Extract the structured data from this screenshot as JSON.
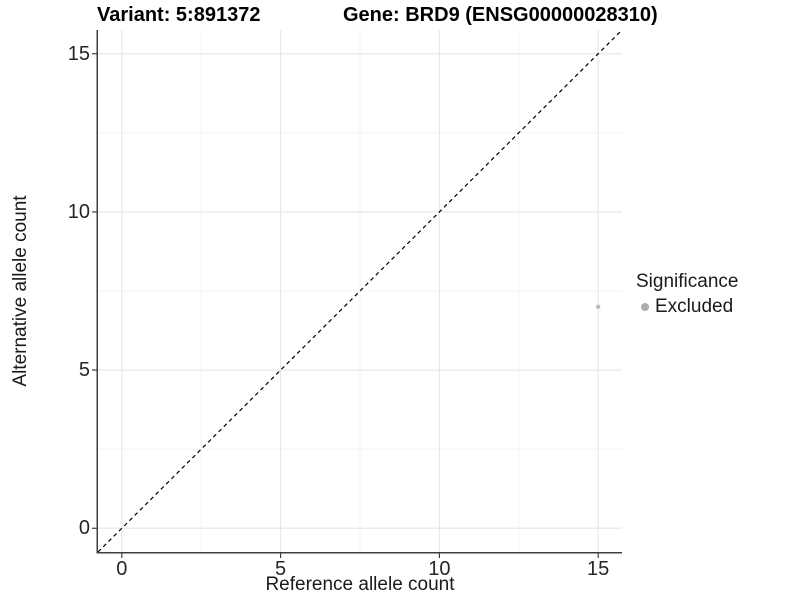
{
  "chart_data": {
    "type": "scatter",
    "title_left": "Variant: 5:891372",
    "title_right": "Gene: BRD9 (ENSG00000028310)",
    "xlabel": "Reference allele count",
    "ylabel": "Alternative allele count",
    "xlim": [
      -0.75,
      15.75
    ],
    "ylim": [
      -0.75,
      15.75
    ],
    "x_ticks": [
      0,
      5,
      10,
      15
    ],
    "y_ticks": [
      0,
      5,
      10,
      15
    ],
    "x_minor_ticks": [
      2.5,
      7.5,
      12.5
    ],
    "y_minor_ticks": [
      2.5,
      7.5,
      12.5
    ],
    "grid": "major+minor",
    "identity_line": {
      "style": "dashed",
      "color": "#000000",
      "from": [
        -0.75,
        -0.75
      ],
      "to": [
        15.75,
        15.75
      ]
    },
    "series": [
      {
        "name": "Excluded",
        "color": "#bcbcbc",
        "point_radius": 2.2,
        "points": [
          {
            "x": 15,
            "y": 7
          }
        ]
      }
    ],
    "legend": {
      "title": "Significance",
      "position": "right",
      "entries": [
        {
          "label": "Excluded",
          "color": "#acacac"
        }
      ]
    },
    "colors": {
      "background": "#ffffff",
      "grid_major": "#e8e8e8",
      "grid_minor": "#f3f3f3",
      "axis_line": "#3f3f3f",
      "tick_mark": "#3f3f3f"
    }
  }
}
